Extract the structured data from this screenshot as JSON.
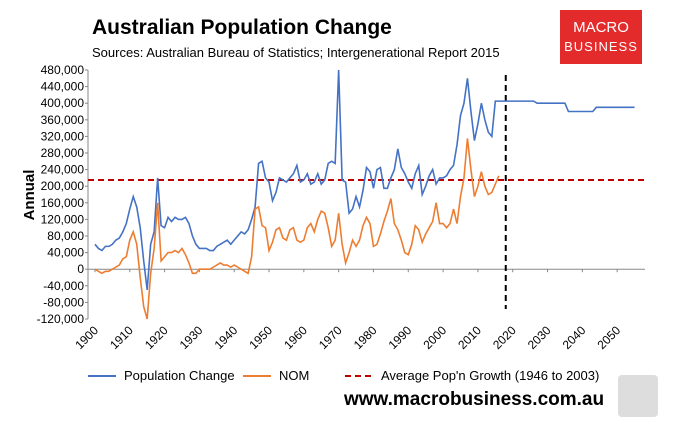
{
  "chart_data": {
    "type": "line",
    "title": "Australian Population Change",
    "subtitle": "Sources: Australian Bureau of Statistics; Intergenerational Report 2015",
    "y_label": "Annual",
    "logo": {
      "line1": "MACRO",
      "line2": "BUSINESS"
    },
    "website": "www.macrobusiness.com.au",
    "x": [
      1900,
      1901,
      1902,
      1903,
      1904,
      1905,
      1906,
      1907,
      1908,
      1909,
      1910,
      1911,
      1912,
      1913,
      1914,
      1915,
      1916,
      1917,
      1918,
      1919,
      1920,
      1921,
      1922,
      1923,
      1924,
      1925,
      1926,
      1927,
      1928,
      1929,
      1930,
      1931,
      1932,
      1933,
      1934,
      1935,
      1936,
      1937,
      1938,
      1939,
      1940,
      1941,
      1942,
      1943,
      1944,
      1945,
      1946,
      1947,
      1948,
      1949,
      1950,
      1951,
      1952,
      1953,
      1954,
      1955,
      1956,
      1957,
      1958,
      1959,
      1960,
      1961,
      1962,
      1963,
      1964,
      1965,
      1966,
      1967,
      1968,
      1969,
      1970,
      1971,
      1972,
      1973,
      1974,
      1975,
      1976,
      1977,
      1978,
      1979,
      1980,
      1981,
      1982,
      1983,
      1984,
      1985,
      1986,
      1987,
      1988,
      1989,
      1990,
      1991,
      1992,
      1993,
      1994,
      1995,
      1996,
      1997,
      1998,
      1999,
      2000,
      2001,
      2002,
      2003,
      2004,
      2005,
      2006,
      2007,
      2008,
      2009,
      2010,
      2011,
      2012,
      2013,
      2014,
      2015,
      2016,
      2017,
      2018,
      2019,
      2020,
      2021,
      2022,
      2023,
      2024,
      2025,
      2026,
      2027,
      2028,
      2029,
      2030,
      2031,
      2032,
      2033,
      2034,
      2035,
      2036,
      2037,
      2038,
      2039,
      2040,
      2041,
      2042,
      2043,
      2044,
      2045,
      2046,
      2047,
      2048,
      2049,
      2050,
      2051,
      2052,
      2053,
      2054,
      2055
    ],
    "series": [
      {
        "name": "Population Change",
        "color": "#4472c4",
        "values": [
          60000,
          50000,
          45000,
          55000,
          55000,
          60000,
          70000,
          75000,
          90000,
          110000,
          145000,
          175000,
          150000,
          100000,
          20000,
          -50000,
          60000,
          90000,
          220000,
          105000,
          100000,
          125000,
          115000,
          125000,
          120000,
          120000,
          125000,
          110000,
          80000,
          60000,
          50000,
          50000,
          50000,
          45000,
          45000,
          55000,
          60000,
          65000,
          70000,
          60000,
          70000,
          80000,
          90000,
          85000,
          95000,
          120000,
          150000,
          255000,
          260000,
          220000,
          210000,
          165000,
          185000,
          220000,
          215000,
          210000,
          220000,
          230000,
          250000,
          210000,
          215000,
          230000,
          205000,
          210000,
          230000,
          205000,
          215000,
          255000,
          260000,
          255000,
          480000,
          215000,
          210000,
          135000,
          145000,
          175000,
          150000,
          190000,
          245000,
          235000,
          195000,
          240000,
          245000,
          195000,
          195000,
          220000,
          240000,
          290000,
          245000,
          230000,
          210000,
          195000,
          230000,
          250000,
          180000,
          200000,
          225000,
          240000,
          205000,
          220000,
          220000,
          225000,
          240000,
          250000,
          300000,
          370000,
          400000,
          460000,
          380000,
          310000,
          350000,
          400000,
          360000,
          330000,
          320000,
          405000,
          405000,
          405000,
          405000,
          405000,
          405000,
          405000,
          405000,
          405000,
          405000,
          405000,
          405000,
          400000,
          400000,
          400000,
          400000,
          400000,
          400000,
          400000,
          400000,
          400000,
          380000,
          380000,
          380000,
          380000,
          380000,
          380000,
          380000,
          380000,
          390000,
          390000,
          390000,
          390000,
          390000,
          390000,
          390000,
          390000,
          390000,
          390000,
          390000,
          390000
        ]
      },
      {
        "name": "NOM",
        "color": "#ed7d31",
        "values": [
          0,
          -5000,
          -10000,
          -5000,
          -5000,
          0,
          5000,
          10000,
          25000,
          30000,
          70000,
          90000,
          60000,
          -20000,
          -90000,
          -120000,
          -10000,
          50000,
          160000,
          20000,
          30000,
          40000,
          40000,
          45000,
          40000,
          50000,
          35000,
          15000,
          -10000,
          -10000,
          0,
          0,
          0,
          0,
          5000,
          10000,
          15000,
          10000,
          10000,
          5000,
          10000,
          5000,
          0,
          -5000,
          -10000,
          30000,
          145000,
          150000,
          105000,
          100000,
          45000,
          65000,
          95000,
          100000,
          75000,
          70000,
          95000,
          100000,
          70000,
          65000,
          70000,
          100000,
          110000,
          90000,
          120000,
          140000,
          135000,
          100000,
          55000,
          70000,
          135000,
          60000,
          15000,
          40000,
          70000,
          55000,
          70000,
          105000,
          125000,
          110000,
          55000,
          60000,
          85000,
          115000,
          140000,
          170000,
          110000,
          95000,
          70000,
          40000,
          35000,
          60000,
          105000,
          95000,
          65000,
          85000,
          100000,
          115000,
          160000,
          110000,
          110000,
          100000,
          110000,
          145000,
          110000,
          175000,
          220000,
          315000,
          240000,
          175000,
          200000,
          235000,
          200000,
          180000,
          185000,
          205000,
          225000,
          null,
          null,
          null,
          null,
          null,
          null,
          null,
          null,
          null,
          null,
          null,
          null,
          null,
          null,
          null,
          null,
          null,
          null,
          null,
          null,
          null,
          null,
          null,
          null,
          null,
          null,
          null,
          null,
          null,
          null,
          null,
          null,
          null,
          null,
          null,
          null,
          null,
          null,
          null
        ]
      }
    ],
    "reference_line": {
      "name": "Average Pop'n Growth (1946 to 2003)",
      "color": "#c00000",
      "value": 215000
    },
    "forecast_line_x": 2018,
    "xlim": [
      1898,
      2058
    ],
    "xticks": [
      1900,
      1910,
      1920,
      1930,
      1940,
      1950,
      1960,
      1970,
      1980,
      1990,
      2000,
      2010,
      2020,
      2030,
      2040,
      2050
    ],
    "ylim": [
      -120000,
      480000
    ],
    "yticks": [
      {
        "value": -120000,
        "label": "-120,000"
      },
      {
        "value": -80000,
        "label": "-80,000"
      },
      {
        "value": -40000,
        "label": "-40,000"
      },
      0,
      {
        "value": 40000,
        "label": "40,000"
      },
      {
        "value": 80000,
        "label": "80,000"
      },
      {
        "value": 120000,
        "label": "120,000"
      },
      {
        "value": 160000,
        "label": "160,000"
      },
      {
        "value": 200000,
        "label": "200,000"
      },
      {
        "value": 240000,
        "label": "240,000"
      },
      {
        "value": 280000,
        "label": "280,000"
      },
      {
        "value": 320000,
        "label": "320,000"
      },
      {
        "value": 360000,
        "label": "360,000"
      },
      {
        "value": 400000,
        "label": "400,000"
      },
      {
        "value": 440000,
        "label": "440,000"
      },
      {
        "value": 480000,
        "label": "480,000"
      }
    ],
    "grid": false,
    "legend": "bottom"
  }
}
